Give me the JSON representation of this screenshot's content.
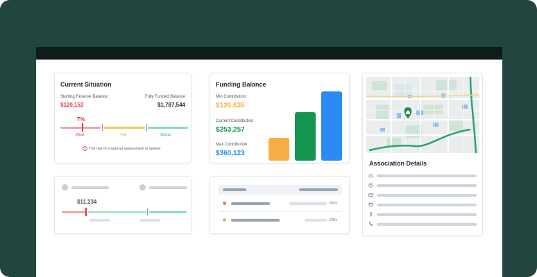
{
  "current_situation": {
    "title": "Current Situation",
    "starting_label": "Starting Reserve Balance",
    "starting_value": "$120,152",
    "funded_label": "Fully Funded Balance",
    "funded_value": "$1,787,544",
    "percent": "7%",
    "scale": {
      "weak": "Weak",
      "fair": "Fair",
      "strong": "Strong"
    },
    "warning": "The risk of a special assessment is severe."
  },
  "funding_balance": {
    "title": "Funding Balance",
    "min_label": "Min Contribution",
    "min_value": "$120,635",
    "current_label": "Current Contribution",
    "current_value": "$253,257",
    "max_label": "Max Contribution",
    "max_value": "$360,123"
  },
  "chart_data": {
    "type": "bar",
    "categories": [
      "Min Contribution",
      "Current Contribution",
      "Max Contribution"
    ],
    "values": [
      120635,
      253257,
      360123
    ],
    "colors": [
      "#f6ae45",
      "#14964e",
      "#2a8cf3"
    ],
    "title": "Funding Balance",
    "xlabel": "",
    "ylabel": ""
  },
  "association": {
    "title": "Association Details",
    "icons": [
      "home-icon",
      "user-icon",
      "mail-icon",
      "calendar-icon",
      "location-pin-icon",
      "phone-icon"
    ]
  },
  "placeholder_left": {
    "value": "$11,234"
  },
  "placeholder_mid": {
    "rows": [
      {
        "percent": "55%",
        "color": "#ef7d4a"
      },
      {
        "percent": "29%",
        "color": "#9ed86a"
      }
    ]
  },
  "colors": {
    "backdrop": "#234540",
    "red": "#e0343a",
    "orange": "#f6ae45",
    "green": "#14964e",
    "blue": "#2a8cf3"
  }
}
